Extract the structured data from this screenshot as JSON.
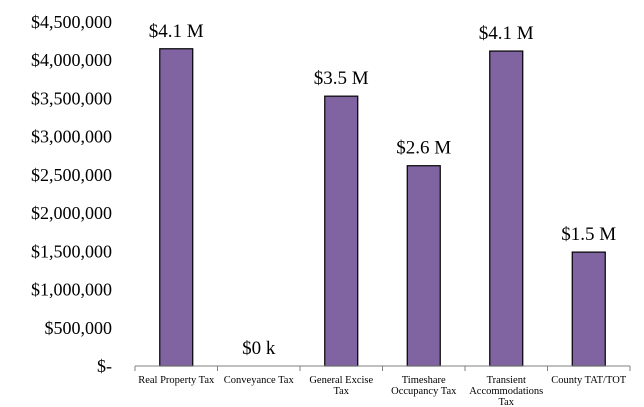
{
  "chart_data": {
    "type": "bar",
    "title": "",
    "xlabel": "",
    "ylabel": "",
    "ylim": [
      0,
      4500000
    ],
    "grid": false,
    "legend": "none",
    "bar_color": "#8064a2",
    "bar_edge_color": "#000000",
    "categories": [
      "Real Property Tax",
      "Conveyance Tax",
      "General Excise Tax",
      "Timeshare Occupancy Tax",
      "Transient Accommodations Tax",
      "County TAT/TOT"
    ],
    "category_lines": [
      [
        "Real Property Tax"
      ],
      [
        "Conveyance Tax"
      ],
      [
        "General Excise",
        "Tax"
      ],
      [
        "Timeshare",
        "Occupancy Tax"
      ],
      [
        "Transient",
        "Accommodations",
        "Tax"
      ],
      [
        "County TAT/TOT"
      ]
    ],
    "values": [
      4150000,
      0,
      3530000,
      2620000,
      4120000,
      1490000
    ],
    "data_labels": [
      "$4.1 M",
      "$0 k",
      "$3.5 M",
      "$2.6 M",
      "$4.1 M",
      "$1.5 M"
    ],
    "yticks": [
      0,
      500000,
      1000000,
      1500000,
      2000000,
      2500000,
      3000000,
      3500000,
      4000000,
      4500000
    ],
    "ytick_labels": [
      "$-",
      "$500,000",
      "$1,000,000",
      "$1,500,000",
      "$2,000,000",
      "$2,500,000",
      "$3,000,000",
      "$3,500,000",
      "$4,000,000",
      "$4,500,000"
    ]
  }
}
